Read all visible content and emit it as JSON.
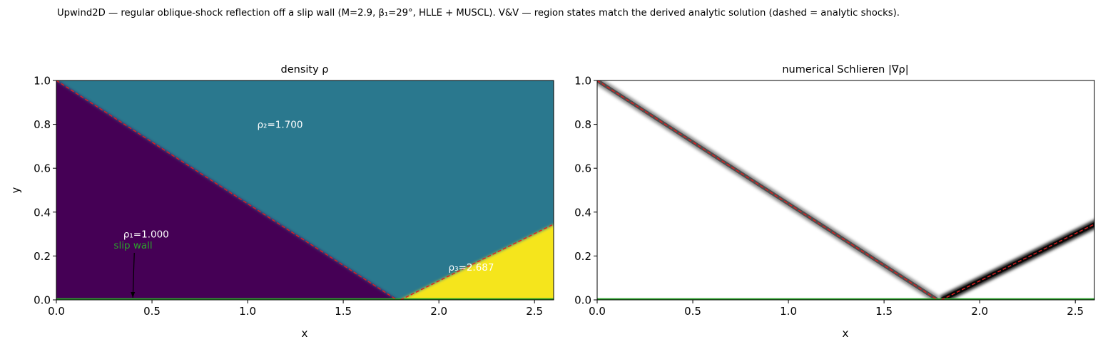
{
  "suptitle": "Upwind2D — regular oblique-shock reflection off a slip wall (M=2.9, β₁=29°, HLLE + MUSCL).  V&V — region states match the derived analytic solution (dashed = analytic shocks).",
  "colors": {
    "region1": "#440154",
    "region2": "#2a788e",
    "region3": "#f5e51d",
    "analytic_shock": "#e41a1c",
    "wall": "#2ca02c",
    "wall_label": "#2ca02c",
    "region_label": "#ffffff",
    "schlieren_dark": "#000000"
  },
  "chart_data": [
    {
      "type": "heatmap",
      "title": "density ρ",
      "xlabel": "x",
      "ylabel": "y",
      "xlim": [
        0.0,
        2.6
      ],
      "ylim": [
        0.0,
        1.0
      ],
      "xticks": [
        "0.0",
        "0.5",
        "1.0",
        "1.5",
        "2.0",
        "2.5"
      ],
      "yticks": [
        "0.0",
        "0.2",
        "0.4",
        "0.6",
        "0.8",
        "1.0"
      ],
      "grid": false,
      "colormap": "viridis",
      "regions": [
        {
          "name": "region 1",
          "density": 1.0
        },
        {
          "name": "region 2",
          "density": 1.7
        },
        {
          "name": "region 3",
          "density": 2.687
        }
      ],
      "incident_shock": {
        "x": [
          0.0,
          1.78
        ],
        "y": [
          1.0,
          0.0
        ],
        "style": "dashed"
      },
      "reflected_shock": {
        "x": [
          1.8,
          2.6
        ],
        "y": [
          0.0,
          0.345
        ],
        "style": "dashed"
      },
      "wall_y": 0.0,
      "annotations": [
        {
          "text": "ρ₁=1.000",
          "x": 0.35,
          "y": 0.3
        },
        {
          "text": "ρ₂=1.700",
          "x": 1.05,
          "y": 0.8
        },
        {
          "text": "ρ₃=2.687",
          "x": 2.05,
          "y": 0.15
        },
        {
          "text": "slip wall",
          "x": 0.3,
          "y": 0.25,
          "arrow_to": [
            0.4,
            0.0
          ]
        }
      ]
    },
    {
      "type": "heatmap",
      "title": "numerical Schlieren |∇ρ|",
      "xlabel": "x",
      "ylabel": "",
      "xlim": [
        0.0,
        2.6
      ],
      "ylim": [
        0.0,
        1.0
      ],
      "xticks": [
        "0.0",
        "0.5",
        "1.0",
        "1.5",
        "2.0",
        "2.5"
      ],
      "yticks": [
        "0.0",
        "0.2",
        "0.4",
        "0.6",
        "0.8",
        "1.0"
      ],
      "grid": false,
      "colormap": "gray_r",
      "incident_shock": {
        "x": [
          0.0,
          1.78
        ],
        "y": [
          1.0,
          0.0
        ],
        "style": "dashed"
      },
      "reflected_shock": {
        "x": [
          1.8,
          2.6
        ],
        "y": [
          0.0,
          0.345
        ],
        "style": "dashed"
      },
      "wall_y": 0.0
    }
  ]
}
